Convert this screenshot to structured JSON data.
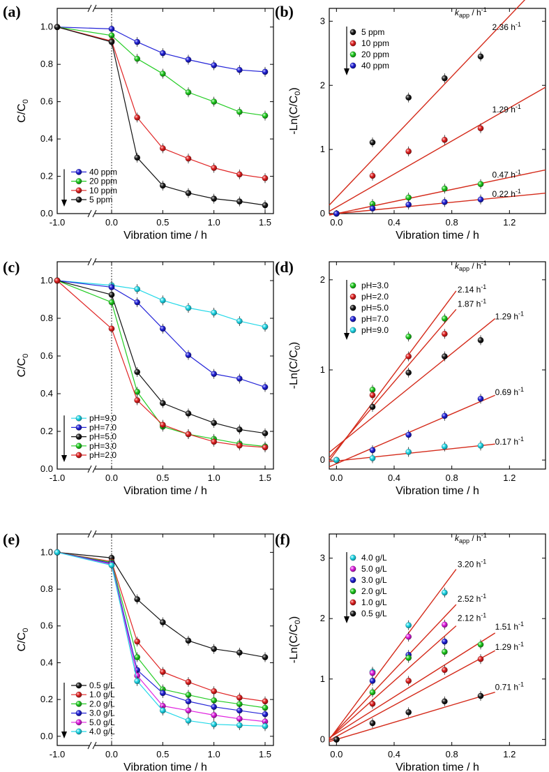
{
  "colors": {
    "black": "#111111",
    "red": "#e02424",
    "green": "#22cc22",
    "blue": "#2424d8",
    "cyan": "#22d8e8",
    "magenta": "#e020e0",
    "fit_line": "#d42a1a"
  },
  "chart_data": [
    {
      "panel": "(a)",
      "type": "line",
      "xlabel": "Vibration time / h",
      "ylabel": "C/C0",
      "xlim": [
        -1.0,
        1.5
      ],
      "ylim": [
        0.0,
        1.1
      ],
      "axis_break": "between -1.0 and 0.0",
      "xticks": [
        "-1.0",
        "0.0",
        "0.5",
        "1.0",
        "1.5"
      ],
      "yticks": [
        "0.0",
        "0.2",
        "0.4",
        "0.6",
        "0.8",
        "1.0"
      ],
      "x": [
        -1.0,
        0.0,
        0.25,
        0.5,
        0.75,
        1.0,
        1.25,
        1.5
      ],
      "legend_position": "bottom-left",
      "legend_arrow": true,
      "series": [
        {
          "name": "40 ppm",
          "color": "blue",
          "values": [
            1.0,
            0.99,
            0.92,
            0.86,
            0.825,
            0.795,
            0.77,
            0.76
          ]
        },
        {
          "name": "20 ppm",
          "color": "green",
          "values": [
            1.0,
            0.955,
            0.83,
            0.75,
            0.65,
            0.6,
            0.545,
            0.525
          ]
        },
        {
          "name": "10 ppm",
          "color": "red",
          "values": [
            1.0,
            0.925,
            0.515,
            0.35,
            0.295,
            0.245,
            0.21,
            0.19
          ]
        },
        {
          "name": "5 ppm",
          "color": "black",
          "values": [
            1.0,
            0.92,
            0.3,
            0.15,
            0.11,
            0.08,
            0.065,
            0.045
          ]
        }
      ]
    },
    {
      "panel": "(b)",
      "type": "scatter",
      "xlabel": "Vibration time / h",
      "ylabel": "-Ln(C/C0)",
      "xlim": [
        -0.05,
        1.45
      ],
      "ylim": [
        0.0,
        3.2
      ],
      "xticks": [
        "0.0",
        "0.4",
        "0.8",
        "1.2"
      ],
      "yticks": [
        "0",
        "1",
        "2",
        "3"
      ],
      "x": [
        0.0,
        0.25,
        0.5,
        0.75,
        1.0
      ],
      "legend_position": "top-left",
      "legend_arrow": true,
      "k_header": "/ h",
      "series": [
        {
          "name": "5 ppm",
          "color": "black",
          "values": [
            0.0,
            1.11,
            1.81,
            2.11,
            2.45
          ],
          "fit": [
            0.25,
            2.36
          ],
          "k_label": "2.36 h",
          "k_at": [
            1.08,
            2.86
          ]
        },
        {
          "name": "10 ppm",
          "color": "red",
          "values": [
            0.0,
            0.59,
            0.97,
            1.15,
            1.33
          ],
          "fit": [
            0.1,
            1.29
          ],
          "k_label": "1.29 h",
          "k_at": [
            1.08,
            1.58
          ]
        },
        {
          "name": "20 ppm",
          "color": "green",
          "values": [
            0.0,
            0.15,
            0.25,
            0.39,
            0.46
          ],
          "fit": [
            0.0,
            0.47
          ],
          "k_label": "0.47 h",
          "k_at": [
            1.08,
            0.56
          ]
        },
        {
          "name": "40 ppm",
          "color": "blue",
          "values": [
            0.0,
            0.08,
            0.14,
            0.18,
            0.22
          ],
          "fit": [
            0.0,
            0.22
          ],
          "k_label": "0.22 h",
          "k_at": [
            1.08,
            0.26
          ]
        }
      ]
    },
    {
      "panel": "(c)",
      "type": "line",
      "xlabel": "Vibration time / h",
      "ylabel": "C/C0",
      "xlim": [
        -1.0,
        1.5
      ],
      "ylim": [
        0.0,
        1.1
      ],
      "axis_break": "between -1.0 and 0.0",
      "xticks": [
        "-1.0",
        "0.0",
        "0.5",
        "1.0",
        "1.5"
      ],
      "yticks": [
        "0.0",
        "0.2",
        "0.4",
        "0.6",
        "0.8",
        "1.0"
      ],
      "x": [
        -1.0,
        0.0,
        0.25,
        0.5,
        0.75,
        1.0,
        1.25,
        1.5
      ],
      "legend_position": "bottom-left",
      "legend_arrow": true,
      "series": [
        {
          "name": "pH=9.0",
          "color": "cyan",
          "values": [
            1.0,
            0.975,
            0.955,
            0.895,
            0.855,
            0.83,
            0.785,
            0.755
          ]
        },
        {
          "name": "pH=7.0",
          "color": "blue",
          "values": [
            1.0,
            0.965,
            0.885,
            0.745,
            0.605,
            0.505,
            0.48,
            0.435
          ]
        },
        {
          "name": "pH=5.0",
          "color": "black",
          "values": [
            1.0,
            0.925,
            0.515,
            0.35,
            0.295,
            0.245,
            0.21,
            0.19
          ]
        },
        {
          "name": "pH=3.0",
          "color": "green",
          "values": [
            1.0,
            0.885,
            0.41,
            0.225,
            0.185,
            0.16,
            0.135,
            0.12
          ]
        },
        {
          "name": "pH=2.0",
          "color": "red",
          "values": [
            1.0,
            0.745,
            0.365,
            0.235,
            0.185,
            0.145,
            0.125,
            0.115
          ]
        }
      ]
    },
    {
      "panel": "(d)",
      "type": "scatter",
      "xlabel": "Vibration time / h",
      "ylabel": "-Ln(C/C0)",
      "xlim": [
        -0.05,
        1.45
      ],
      "ylim": [
        -0.1,
        2.2
      ],
      "xticks": [
        "0.0",
        "0.4",
        "0.8",
        "1.2"
      ],
      "yticks": [
        "0",
        "1",
        "2"
      ],
      "x": [
        0.0,
        0.25,
        0.5,
        0.75,
        1.0
      ],
      "legend_position": "top-left",
      "legend_arrow": true,
      "k_header": "/ h",
      "series": [
        {
          "name": "pH=3.0",
          "color": "green",
          "values": [
            0.0,
            0.78,
            1.37,
            1.57,
            null
          ],
          "fit": [
            0.1,
            2.14
          ],
          "fit_end": 0.83,
          "k_label": "2.14 h",
          "k_at": [
            0.84,
            1.86
          ]
        },
        {
          "name": "pH=2.0",
          "color": "red",
          "values": [
            0.0,
            0.72,
            1.15,
            1.4,
            null
          ],
          "fit": [
            0.12,
            1.87
          ],
          "fit_end": 0.83,
          "k_label": "1.87 h",
          "k_at": [
            0.84,
            1.7
          ]
        },
        {
          "name": "pH=5.0",
          "color": "black",
          "values": [
            0.0,
            0.59,
            0.97,
            1.15,
            1.33
          ],
          "fit": [
            0.15,
            1.29
          ],
          "fit_end": 1.1,
          "k_label": "1.29 h",
          "k_at": [
            1.1,
            1.56
          ]
        },
        {
          "name": "pH=7.0",
          "color": "blue",
          "values": [
            0.0,
            0.11,
            0.28,
            0.49,
            0.68
          ],
          "fit": [
            -0.04,
            0.69
          ],
          "fit_end": 1.1,
          "k_label": "0.69 h",
          "k_at": [
            1.1,
            0.72
          ]
        },
        {
          "name": "pH=9.0",
          "color": "cyan",
          "values": [
            0.0,
            0.02,
            0.09,
            0.15,
            0.16
          ],
          "fit": [
            -0.01,
            0.17
          ],
          "fit_end": 1.1,
          "k_label": "0.17 h",
          "k_at": [
            1.1,
            0.17
          ]
        }
      ]
    },
    {
      "panel": "(e)",
      "type": "line",
      "xlabel": "Vibration time / h",
      "ylabel": "C/C0",
      "xlim": [
        -1.0,
        1.5
      ],
      "ylim": [
        -0.05,
        1.1
      ],
      "axis_break": "between -1.0 and 0.0",
      "xticks": [
        "-1.0",
        "0.0",
        "0.5",
        "1.0",
        "1.5"
      ],
      "yticks": [
        "0.0",
        "0.2",
        "0.4",
        "0.6",
        "0.8",
        "1.0"
      ],
      "x": [
        -1.0,
        0.0,
        0.25,
        0.5,
        0.75,
        1.0,
        1.25,
        1.5
      ],
      "legend_position": "bottom-left",
      "legend_arrow": true,
      "series": [
        {
          "name": "0.5 g/L",
          "color": "black",
          "values": [
            1.0,
            0.97,
            0.745,
            0.62,
            0.52,
            0.475,
            0.455,
            0.43
          ]
        },
        {
          "name": "1.0 g/L",
          "color": "red",
          "values": [
            1.0,
            0.95,
            0.515,
            0.35,
            0.295,
            0.245,
            0.21,
            0.19
          ]
        },
        {
          "name": "2.0 g/L",
          "color": "green",
          "values": [
            1.0,
            0.945,
            0.43,
            0.255,
            0.225,
            0.195,
            0.175,
            0.155
          ]
        },
        {
          "name": "3.0 g/L",
          "color": "blue",
          "values": [
            1.0,
            0.94,
            0.36,
            0.235,
            0.19,
            0.16,
            0.14,
            0.12
          ]
        },
        {
          "name": "5.0 g/L",
          "color": "magenta",
          "values": [
            1.0,
            0.935,
            0.33,
            0.165,
            0.14,
            0.115,
            0.095,
            0.08
          ]
        },
        {
          "name": "4.0 g/L",
          "color": "cyan",
          "values": [
            1.0,
            0.93,
            0.3,
            0.14,
            0.085,
            0.065,
            0.06,
            0.055
          ]
        }
      ]
    },
    {
      "panel": "(f)",
      "type": "scatter",
      "xlabel": "Vibration time / h",
      "ylabel": "-Ln(C/C0)",
      "xlim": [
        -0.05,
        1.45
      ],
      "ylim": [
        -0.1,
        3.4
      ],
      "xticks": [
        "0.0",
        "0.4",
        "0.8",
        "1.2"
      ],
      "yticks": [
        "0",
        "1",
        "2",
        "3"
      ],
      "x": [
        0.0,
        0.25,
        0.5,
        0.75,
        1.0
      ],
      "legend_position": "top-left",
      "legend_arrow": true,
      "k_header": "/ h",
      "series": [
        {
          "name": "4.0 g/L",
          "color": "cyan",
          "values": [
            0.0,
            1.12,
            1.89,
            2.43,
            null
          ],
          "fit": [
            0.16,
            3.2
          ],
          "fit_end": 0.83,
          "k_label": "3.20 h",
          "k_at": [
            0.84,
            2.85
          ]
        },
        {
          "name": "5.0 g/L",
          "color": "magenta",
          "values": [
            0.0,
            1.1,
            1.7,
            1.9,
            null
          ],
          "fit": [
            0.14,
            2.52
          ],
          "fit_end": 0.83,
          "k_label": "2.52 h",
          "k_at": [
            0.84,
            2.28
          ]
        },
        {
          "name": "3.0 g/L",
          "color": "blue",
          "values": [
            0.0,
            0.97,
            1.4,
            1.62,
            null
          ],
          "fit": [
            0.12,
            2.12
          ],
          "fit_end": 0.83,
          "k_label": "2.12 h",
          "k_at": [
            0.84,
            1.96
          ]
        },
        {
          "name": "2.0 g/L",
          "color": "green",
          "values": [
            0.0,
            0.78,
            1.35,
            1.45,
            1.57
          ],
          "fit": [
            0.1,
            1.51
          ],
          "fit_end": 1.1,
          "k_label": "1.51 h",
          "k_at": [
            1.1,
            1.82
          ]
        },
        {
          "name": "1.0 g/L",
          "color": "red",
          "values": [
            0.0,
            0.59,
            0.97,
            1.15,
            1.33
          ],
          "fit": [
            0.05,
            1.29
          ],
          "fit_end": 1.1,
          "k_label": "1.29 h",
          "k_at": [
            1.1,
            1.48
          ]
        },
        {
          "name": "0.5 g/L",
          "color": "black",
          "values": [
            0.0,
            0.27,
            0.45,
            0.63,
            0.72
          ],
          "fit": [
            0.0,
            0.71
          ],
          "fit_end": 1.1,
          "k_label": "0.71 h",
          "k_at": [
            1.1,
            0.82
          ]
        }
      ]
    }
  ]
}
